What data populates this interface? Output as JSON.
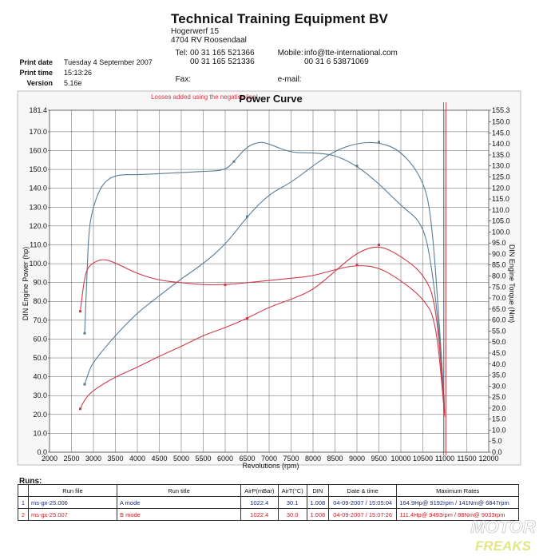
{
  "header": {
    "company": "Technical Training Equipment BV",
    "address1": "Hogerwerf 15",
    "address2": "4704 RV Roosendaal",
    "tel_label": "Tel:",
    "tel": "00 31 165 521336",
    "fax_label": "Fax:",
    "fax": "00 31 165 521366",
    "mobile_label": "Mobile:",
    "mobile": "00 31 6 53871069",
    "email_label": "e-mail:",
    "email": "info@tte-international.com"
  },
  "meta": {
    "date_label": "Print date",
    "date": "Tuesday 4 September 2007",
    "time_label": "Print time",
    "time": "15:13:26",
    "version_label": "Version",
    "version": "5.16e"
  },
  "chart_data": {
    "type": "line",
    "title": "Power Curve",
    "annotation": "Losses added using the negative line!",
    "xlabel": "Revolutions (rpm)",
    "ylabel_left": "DIN Engine Power (hp)",
    "ylabel_right": "DIN Engine Torque (Nm)",
    "xlim": [
      2000,
      12000
    ],
    "ylim_left": [
      0,
      181.4
    ],
    "ylim_right": [
      0,
      155.3
    ],
    "x_ticks": [
      2000,
      2500,
      3000,
      3500,
      4000,
      4500,
      5000,
      5500,
      6000,
      6500,
      7000,
      7500,
      8000,
      8500,
      9000,
      9500,
      10000,
      10500,
      11000,
      11500,
      12000
    ],
    "y_left_ticks": [
      "181.4",
      "170.0",
      "160.0",
      "150.0",
      "140.0",
      "130.0",
      "120.0",
      "110.0",
      "100.0",
      "90.0",
      "80.0",
      "70.0",
      "60.0",
      "50.0",
      "40.0",
      "30.0",
      "20.0",
      "10.0",
      "0.0"
    ],
    "y_right_ticks": [
      "155.3",
      "150.0",
      "145.0",
      "140.0",
      "135.0",
      "130.0",
      "125.0",
      "120.0",
      "115.0",
      "110.0",
      "105.0",
      "100.0",
      "95.0",
      "90.0",
      "85.0",
      "80.0",
      "75.0",
      "70.0",
      "65.0",
      "60.0",
      "55.0",
      "50.0",
      "45.0",
      "40.0",
      "35.0",
      "30.0",
      "25.0",
      "20.0",
      "15.0",
      "10.0",
      "5.0",
      "0.0"
    ],
    "grid": true,
    "cursor_rpm": 11000,
    "series": [
      {
        "color": "#5a7d96",
        "axis": "left",
        "x": [
          2800,
          2900,
          3000,
          3500,
          4000,
          4500,
          5000,
          5500,
          6000,
          6500,
          7000,
          7500,
          8000,
          8500,
          9000,
          9500,
          10000,
          10500,
          10700,
          10900,
          11000
        ],
        "y": [
          36,
          43,
          48,
          62,
          74,
          83,
          92,
          100,
          110,
          125,
          137,
          143,
          152,
          160,
          164,
          164.5,
          160,
          145,
          125,
          60,
          20
        ]
      },
      {
        "color": "#5a7d96",
        "axis": "right",
        "x": [
          2800,
          2850,
          2900,
          3000,
          3200,
          3500,
          4000,
          4500,
          5000,
          5500,
          6000,
          6200,
          6500,
          6800,
          7000,
          7500,
          8000,
          8500,
          9000,
          9500,
          10000,
          10500,
          10700,
          10900,
          11000
        ],
        "y": [
          54,
          80,
          102,
          112,
          122,
          126,
          126,
          126.5,
          127,
          127.5,
          128,
          132,
          139,
          141,
          140,
          136,
          136,
          135,
          130,
          122,
          112,
          104,
          85,
          50,
          17
        ]
      },
      {
        "color": "#d13a4a",
        "axis": "left",
        "x": [
          2700,
          2800,
          3000,
          3500,
          4000,
          4500,
          5000,
          5500,
          6000,
          6500,
          7000,
          7500,
          8000,
          8500,
          9000,
          9500,
          10000,
          10500,
          10800,
          11000
        ],
        "y": [
          23,
          28,
          33,
          40,
          45,
          51,
          56,
          62,
          66,
          71,
          77,
          81,
          86,
          96,
          106,
          110,
          104,
          95,
          80,
          20
        ]
      },
      {
        "color": "#d13a4a",
        "axis": "right",
        "x": [
          2700,
          2800,
          2900,
          3200,
          3500,
          4000,
          4500,
          5000,
          5500,
          6000,
          6500,
          7000,
          7500,
          8000,
          8500,
          9000,
          9500,
          10000,
          10500,
          10800,
          11000
        ],
        "y": [
          64,
          80,
          85,
          88,
          86,
          81,
          78,
          77,
          76,
          76,
          77,
          78,
          79,
          80,
          83,
          85,
          84,
          78,
          70,
          60,
          16
        ]
      }
    ]
  },
  "runs": {
    "title": "Runs:",
    "headers": [
      "",
      "Run file",
      "Run title",
      "AirP(mBar)",
      "AirT(°C)",
      "DIN",
      "Date & time",
      "Maximum Rates"
    ],
    "rows": [
      [
        "1",
        "ms-gx-25.006",
        "A mode",
        "1022.4",
        "30.1",
        "1.008",
        "04-09-2007 / 15:05:04",
        "164.9Hp@ 9192rpm / 141Nm@ 6847rpm"
      ],
      [
        "2",
        "ms-gx-25.007",
        "B mode",
        "1022.4",
        "30.0",
        "1.008",
        "04-09-2007 / 15:07:26",
        "111.4Hp@ 9493rpm / 88Nm@ 9033rpm"
      ]
    ]
  },
  "watermark": {
    "line1": "MOTOR",
    "line2": "FREAKS",
    "color": "#c8d21e"
  }
}
